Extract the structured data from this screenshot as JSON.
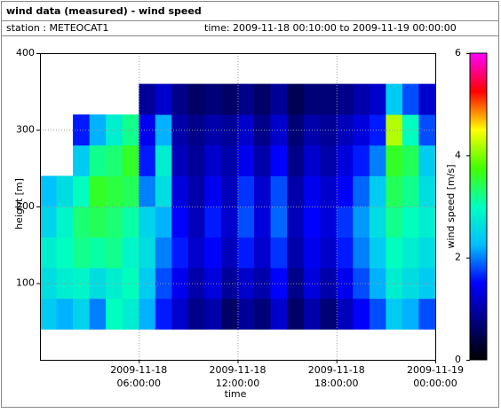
{
  "chart_data": {
    "type": "heatmap",
    "title": "wind data (measured) - wind speed",
    "station": "station : METEOCAT1",
    "time_range": "time: 2009-11-18 00:10:00 to 2009-11-19 00:00:00",
    "x_label": "time",
    "y_label": "height [m]",
    "colorbar_label": "wind speed [m/s]",
    "xlim": [
      0,
      24
    ],
    "xticks": [
      {
        "value": 6,
        "label": [
          "2009-11-18",
          "06:00:00"
        ]
      },
      {
        "value": 12,
        "label": [
          "2009-11-18",
          "12:00:00"
        ]
      },
      {
        "value": 18,
        "label": [
          "2009-11-18",
          "18:00:00"
        ]
      },
      {
        "value": 24,
        "label": [
          "2009-11-19",
          "00:00:00"
        ]
      }
    ],
    "ylim": [
      0,
      400
    ],
    "yticks": [
      100,
      200,
      300,
      400
    ],
    "zlim": [
      0,
      6
    ],
    "zticks": [
      0,
      2,
      4,
      6
    ],
    "grid": true,
    "colormap": [
      "#000000",
      "#00007f",
      "#0000ff",
      "#00bfff",
      "#00ffbf",
      "#40ff00",
      "#ffff00",
      "#ff0000",
      "#ff00ff"
    ],
    "x_edges": [
      0,
      1,
      2,
      3,
      4,
      5,
      6,
      7,
      8,
      9,
      10,
      11,
      12,
      13,
      14,
      15,
      16,
      17,
      18,
      19,
      20,
      21,
      22,
      23,
      24
    ],
    "y_edges": [
      40,
      80,
      120,
      160,
      200,
      240,
      280,
      320,
      360
    ],
    "values": [
      [
        2.4,
        2.6,
        2.8,
        2.5,
        2.3,
        null,
        null,
        null
      ],
      [
        2.2,
        2.8,
        3.0,
        2.9,
        2.6,
        null,
        null,
        null
      ],
      [
        2.5,
        2.9,
        3.2,
        3.3,
        3.0,
        2.4,
        1.6,
        null
      ],
      [
        2.0,
        2.6,
        3.1,
        3.4,
        3.6,
        3.2,
        2.2,
        null
      ],
      [
        3.0,
        2.8,
        3.2,
        3.3,
        3.5,
        3.3,
        2.8,
        null
      ],
      [
        2.8,
        3.0,
        2.9,
        3.1,
        3.4,
        3.6,
        3.2,
        null
      ],
      [
        2.2,
        2.4,
        2.6,
        2.5,
        2.0,
        1.6,
        1.4,
        0.9
      ],
      [
        1.6,
        1.8,
        2.0,
        2.2,
        2.6,
        2.8,
        2.2,
        1.2
      ],
      [
        1.2,
        1.4,
        1.6,
        1.5,
        1.3,
        1.1,
        1.0,
        0.8
      ],
      [
        0.8,
        1.0,
        1.2,
        1.1,
        1.0,
        0.9,
        0.8,
        0.6
      ],
      [
        1.0,
        1.3,
        1.5,
        1.6,
        1.4,
        1.2,
        1.0,
        0.7
      ],
      [
        0.6,
        0.9,
        1.1,
        1.2,
        1.1,
        1.0,
        0.9,
        0.6
      ],
      [
        0.9,
        1.2,
        1.6,
        1.8,
        1.7,
        1.4,
        1.2,
        0.8
      ],
      [
        0.7,
        1.0,
        1.2,
        1.3,
        1.2,
        1.0,
        0.8,
        0.6
      ],
      [
        1.2,
        1.5,
        1.7,
        1.9,
        1.8,
        1.5,
        1.2,
        0.9
      ],
      [
        0.6,
        0.8,
        1.0,
        1.1,
        1.0,
        0.8,
        0.7,
        0.5
      ],
      [
        1.0,
        1.3,
        1.4,
        1.5,
        1.4,
        1.2,
        1.0,
        0.7
      ],
      [
        0.7,
        1.0,
        1.2,
        1.3,
        1.2,
        1.0,
        0.9,
        0.7
      ],
      [
        1.1,
        1.4,
        1.6,
        1.7,
        1.5,
        1.3,
        1.1,
        0.8
      ],
      [
        1.5,
        1.8,
        2.0,
        2.1,
        1.9,
        1.6,
        1.3,
        1.0
      ],
      [
        1.8,
        2.2,
        2.4,
        2.6,
        2.4,
        2.0,
        1.6,
        1.2
      ],
      [
        2.4,
        2.8,
        3.0,
        3.2,
        3.4,
        3.6,
        4.2,
        2.4
      ],
      [
        2.2,
        2.6,
        2.8,
        3.0,
        3.2,
        3.4,
        3.0,
        1.8
      ],
      [
        1.8,
        2.4,
        2.6,
        2.8,
        2.6,
        2.4,
        1.8,
        1.2
      ]
    ]
  }
}
